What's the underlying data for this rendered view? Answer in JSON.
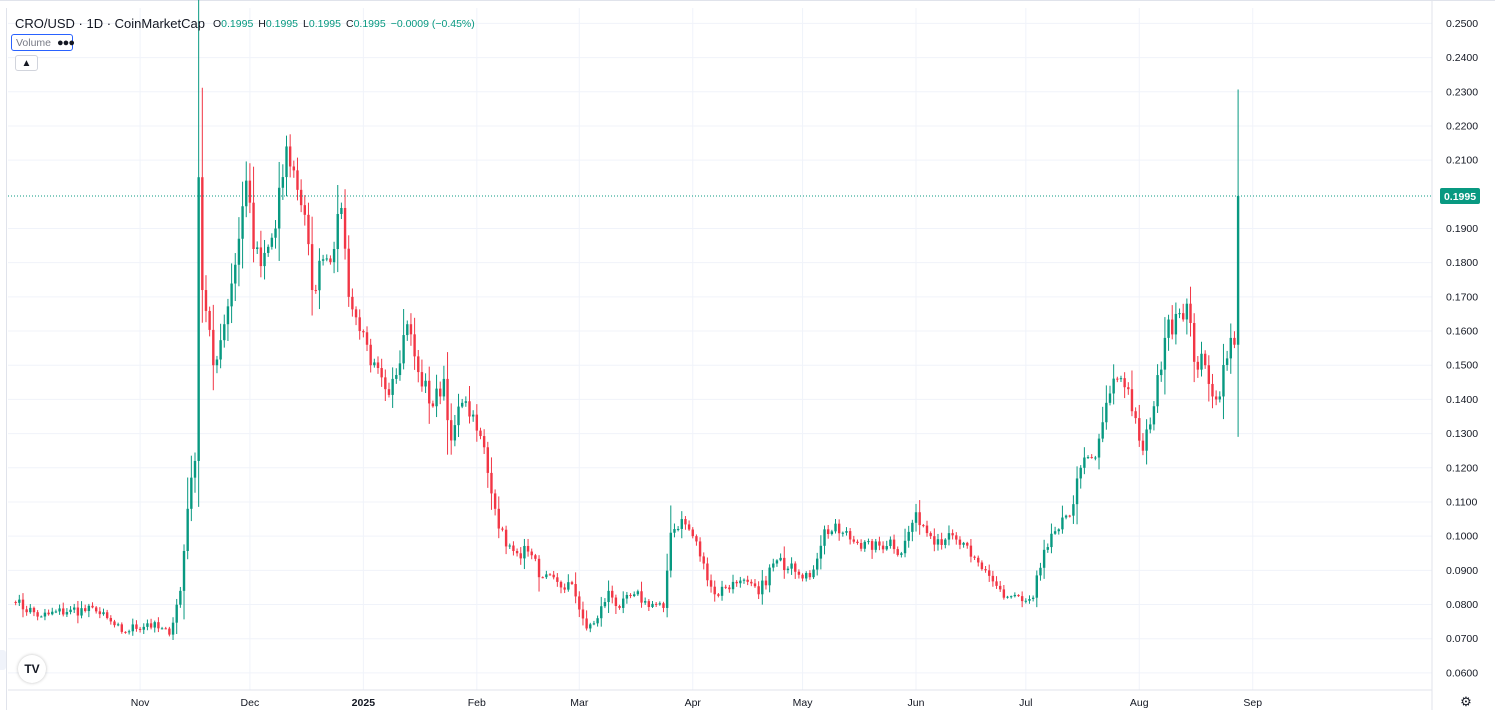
{
  "legend": {
    "symbol": "CRO/USD · 1D · CoinMarketCap",
    "open_key": "O",
    "open": "0.1995",
    "high_key": "H",
    "high": "0.1995",
    "low_key": "L",
    "low": "0.1995",
    "close_key": "C",
    "close": "0.1995",
    "change": "−0.0009 (−0.45%)"
  },
  "volume_pill": {
    "label": "Volume",
    "menu_icon": "ellipsis-icon"
  },
  "collapse_icon": "chevron-up-icon",
  "logo_icon": "tradingview-logo-icon",
  "gear_icon": "settings-gear-icon",
  "last_price_label": "0.1995",
  "colors": {
    "up": "#089981",
    "down": "#f23645",
    "grid": "#f0f3fa",
    "last_price": "#089981"
  },
  "chart_data": {
    "type": "candlestick",
    "title": "CRO/USD · 1D · CoinMarketCap",
    "ylim": [
      0.055,
      0.2545
    ],
    "y_ticks": [
      "0.2500",
      "0.2400",
      "0.2300",
      "0.2200",
      "0.2100",
      "0.1900",
      "0.1800",
      "0.1700",
      "0.1600",
      "0.1500",
      "0.1400",
      "0.1300",
      "0.1200",
      "0.1100",
      "0.1000",
      "0.0900",
      "0.0800",
      "0.0700",
      "0.0600"
    ],
    "x_labels": [
      "Nov",
      "Dec",
      "2025",
      "Feb",
      "Mar",
      "Apr",
      "May",
      "Jun",
      "Jul",
      "Aug",
      "Sep"
    ],
    "last_price": 0.1995,
    "grid": true,
    "close_keypoints": [
      [
        "2024-09-28",
        0.0805
      ],
      [
        "2024-10-05",
        0.0765
      ],
      [
        "2024-10-13",
        0.0785
      ],
      [
        "2024-10-20",
        0.078
      ],
      [
        "2024-10-27",
        0.072
      ],
      [
        "2024-11-03",
        0.0745
      ],
      [
        "2024-11-09",
        0.0712
      ],
      [
        "2024-11-12",
        0.084
      ],
      [
        "2024-11-14",
        0.108
      ],
      [
        "2024-11-16",
        0.122
      ],
      [
        "2024-11-17",
        0.205
      ],
      [
        "2024-11-18",
        0.172
      ],
      [
        "2024-11-21",
        0.15
      ],
      [
        "2024-11-24",
        0.162
      ],
      [
        "2024-11-28",
        0.187
      ],
      [
        "2024-11-30",
        0.204
      ],
      [
        "2024-12-02",
        0.184
      ],
      [
        "2024-12-04",
        0.179
      ],
      [
        "2024-12-08",
        0.19
      ],
      [
        "2024-12-11",
        0.214
      ],
      [
        "2024-12-13",
        0.207
      ],
      [
        "2024-12-16",
        0.194
      ],
      [
        "2024-12-18",
        0.172
      ],
      [
        "2024-12-21",
        0.181
      ],
      [
        "2024-12-24",
        0.184
      ],
      [
        "2024-12-26",
        0.196
      ],
      [
        "2024-12-28",
        0.17
      ],
      [
        "2024-12-31",
        0.16
      ],
      [
        "2025-01-03",
        0.15
      ],
      [
        "2025-01-07",
        0.143
      ],
      [
        "2025-01-09",
        0.146
      ],
      [
        "2025-01-13",
        0.162
      ],
      [
        "2025-01-16",
        0.148
      ],
      [
        "2025-01-20",
        0.138
      ],
      [
        "2025-01-23",
        0.146
      ],
      [
        "2025-01-25",
        0.128
      ],
      [
        "2025-01-28",
        0.139
      ],
      [
        "2025-01-30",
        0.135
      ],
      [
        "2025-02-03",
        0.126
      ],
      [
        "2025-02-06",
        0.108
      ],
      [
        "2025-02-09",
        0.097
      ],
      [
        "2025-02-12",
        0.095
      ],
      [
        "2025-02-15",
        0.0955
      ],
      [
        "2025-02-19",
        0.088
      ],
      [
        "2025-02-24",
        0.085
      ],
      [
        "2025-02-27",
        0.086
      ],
      [
        "2025-03-03",
        0.073
      ],
      [
        "2025-03-06",
        0.076
      ],
      [
        "2025-03-09",
        0.084
      ],
      [
        "2025-03-12",
        0.079
      ],
      [
        "2025-03-16",
        0.083
      ],
      [
        "2025-03-19",
        0.081
      ],
      [
        "2025-03-24",
        0.079
      ],
      [
        "2025-03-26",
        0.101
      ],
      [
        "2025-03-29",
        0.105
      ],
      [
        "2025-04-01",
        0.1
      ],
      [
        "2025-04-04",
        0.092
      ],
      [
        "2025-04-07",
        0.083
      ],
      [
        "2025-04-10",
        0.085
      ],
      [
        "2025-04-14",
        0.087
      ],
      [
        "2025-04-19",
        0.083
      ],
      [
        "2025-04-23",
        0.092
      ],
      [
        "2025-04-28",
        0.092
      ],
      [
        "2025-05-03",
        0.088
      ],
      [
        "2025-05-07",
        0.102
      ],
      [
        "2025-05-12",
        0.101
      ],
      [
        "2025-05-16",
        0.098
      ],
      [
        "2025-05-20",
        0.096
      ],
      [
        "2025-05-25",
        0.099
      ],
      [
        "2025-05-28",
        0.095
      ],
      [
        "2025-06-01",
        0.107
      ],
      [
        "2025-06-05",
        0.1
      ],
      [
        "2025-06-09",
        0.099
      ],
      [
        "2025-06-12",
        0.099
      ],
      [
        "2025-06-16",
        0.094
      ],
      [
        "2025-06-20",
        0.09
      ],
      [
        "2025-06-25",
        0.082
      ],
      [
        "2025-06-30",
        0.081
      ],
      [
        "2025-07-03",
        0.082
      ],
      [
        "2025-07-06",
        0.096
      ],
      [
        "2025-07-10",
        0.102
      ],
      [
        "2025-07-13",
        0.106
      ],
      [
        "2025-07-16",
        0.12
      ],
      [
        "2025-07-20",
        0.123
      ],
      [
        "2025-07-23",
        0.139
      ],
      [
        "2025-07-26",
        0.146
      ],
      [
        "2025-07-29",
        0.143
      ],
      [
        "2025-08-02",
        0.125
      ],
      [
        "2025-08-05",
        0.138
      ],
      [
        "2025-08-08",
        0.158
      ],
      [
        "2025-08-11",
        0.165
      ],
      [
        "2025-08-14",
        0.168
      ],
      [
        "2025-08-16",
        0.151
      ],
      [
        "2025-08-19",
        0.15
      ],
      [
        "2025-08-22",
        0.14
      ],
      [
        "2025-08-25",
        0.152
      ],
      [
        "2025-08-26",
        0.158
      ],
      [
        "2025-08-27",
        0.156
      ],
      [
        "2025-08-28",
        0.1995
      ]
    ]
  }
}
